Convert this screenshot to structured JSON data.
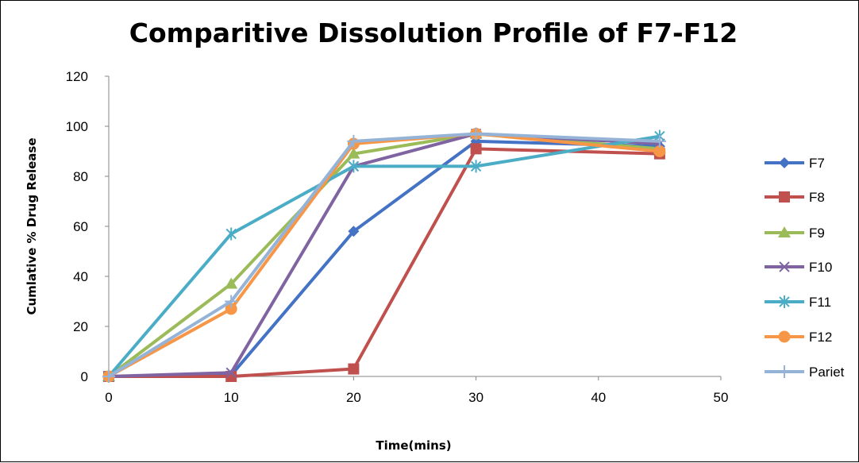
{
  "chart_data": {
    "type": "line",
    "title": "Comparitive Dissolution Profile of F7-F12",
    "xlabel": "Time(mins)",
    "ylabel": "Cumlative % Drug Release",
    "xlim": [
      0,
      50
    ],
    "ylim": [
      0,
      120
    ],
    "x_ticks": [
      "0",
      "10",
      "20",
      "30",
      "40",
      "50"
    ],
    "y_ticks": [
      "0",
      "20",
      "40",
      "60",
      "80",
      "100",
      "120"
    ],
    "x": [
      0,
      10,
      20,
      30,
      45
    ],
    "grid": false,
    "legend_position": "right",
    "series": [
      {
        "name": "F7",
        "color": "#4472C4",
        "marker": "diamond",
        "values": [
          0,
          0.5,
          58,
          94,
          92
        ]
      },
      {
        "name": "F8",
        "color": "#C0504D",
        "marker": "square",
        "values": [
          0,
          0,
          3,
          91,
          89
        ]
      },
      {
        "name": "F9",
        "color": "#9BBB59",
        "marker": "triangle",
        "values": [
          0,
          37,
          89,
          97,
          91
        ]
      },
      {
        "name": "F10",
        "color": "#8064A2",
        "marker": "x",
        "values": [
          0,
          1.5,
          84,
          97,
          93
        ]
      },
      {
        "name": "F11",
        "color": "#4BACC6",
        "marker": "star",
        "values": [
          0,
          57,
          84,
          84,
          96
        ]
      },
      {
        "name": "F12",
        "color": "#F79646",
        "marker": "circle",
        "values": [
          0,
          27,
          93,
          97,
          90
        ]
      },
      {
        "name": "Pariet",
        "color": "#95B3D7",
        "marker": "plus",
        "values": [
          0,
          30,
          94,
          97,
          94
        ]
      }
    ]
  }
}
